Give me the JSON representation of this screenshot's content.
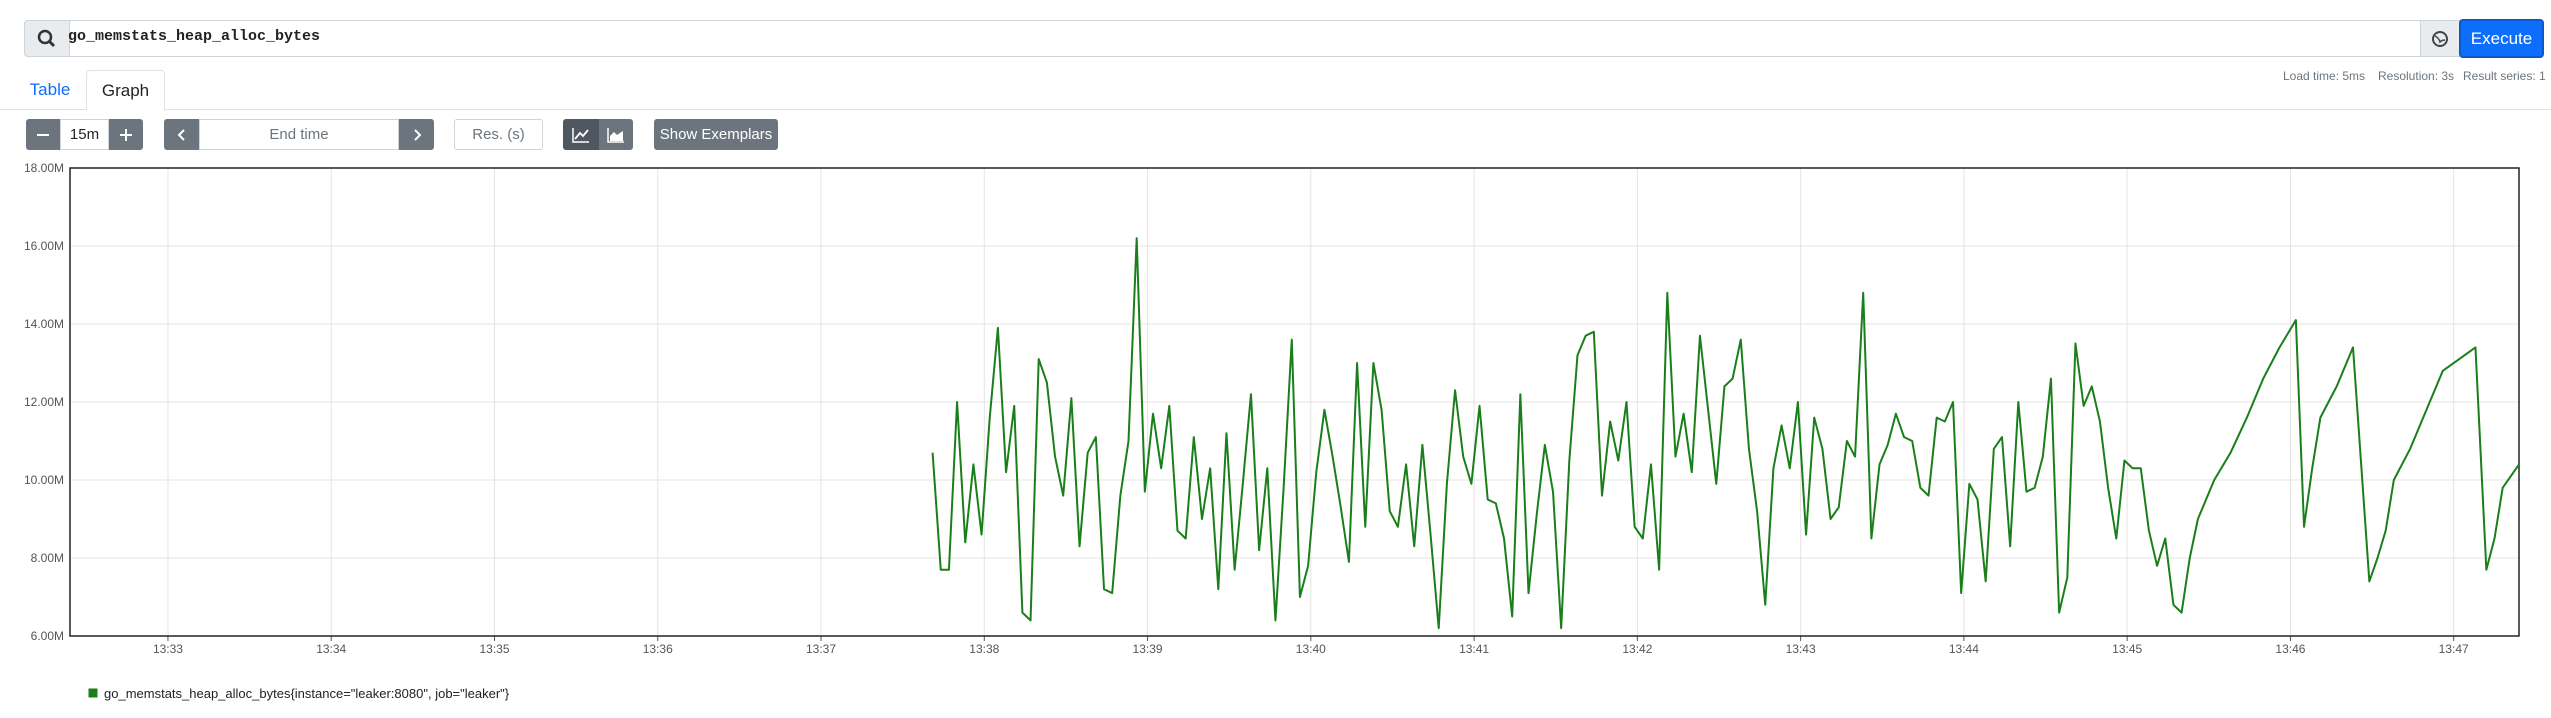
{
  "query": "go_memstats_heap_alloc_bytes",
  "execute_button": "Execute",
  "tabs": [
    "Table",
    "Graph"
  ],
  "stats": {
    "load_time": "Load time: 5ms",
    "resolution": "Resolution: 3s",
    "result_series": "Result series: 1"
  },
  "controls": {
    "range": "15m",
    "end_time_placeholder": "End time",
    "resolution_placeholder": "Res. (s)",
    "exemplars_button": "Show Exemplars"
  },
  "chart_data": {
    "type": "line",
    "x": [
      49061,
      49064,
      49067,
      49070,
      49073,
      49076,
      49079,
      49082,
      49085,
      49088,
      49091,
      49094,
      49097,
      49100,
      49103,
      49106,
      49109,
      49112,
      49115,
      49118,
      49121,
      49124,
      49127,
      49130,
      49133,
      49136,
      49139,
      49142,
      49145,
      49148,
      49151,
      49154,
      49157,
      49160,
      49163,
      49166,
      49169,
      49172,
      49175,
      49178,
      49181,
      49184,
      49187,
      49190,
      49193,
      49196,
      49199,
      49202,
      49205,
      49208,
      49211,
      49214,
      49217,
      49220,
      49223,
      49226,
      49229,
      49232,
      49235,
      49238,
      49241,
      49244,
      49247,
      49250,
      49253,
      49256,
      49259,
      49262,
      49265,
      49268,
      49271,
      49274,
      49277,
      49280,
      49283,
      49286,
      49289,
      49292,
      49295,
      49298,
      49301,
      49304,
      49307,
      49310,
      49313,
      49316,
      49319,
      49322,
      49325,
      49328,
      49331,
      49334,
      49337,
      49340,
      49343,
      49346,
      49349,
      49352,
      49355,
      49358,
      49361,
      49364,
      49367,
      49370,
      49373,
      49376,
      49379,
      49382,
      49385,
      49388,
      49391,
      49394,
      49397,
      49400,
      49403,
      49406,
      49409,
      49412,
      49415,
      49418,
      49421,
      49424,
      49427,
      49430,
      49433,
      49436,
      49439,
      49442,
      49445,
      49448,
      49451,
      49454,
      49457,
      49460,
      49463,
      49466,
      49469,
      49472,
      49475,
      49478,
      49481,
      49484,
      49487,
      49490,
      49493,
      49496,
      49499,
      49502,
      49505,
      49508,
      49511,
      49514,
      49517,
      49520,
      49523,
      49526,
      49532,
      49538,
      49544,
      49550,
      49556,
      49562,
      49565,
      49568,
      49571,
      49577,
      49583,
      49589,
      49592,
      49595,
      49598,
      49604,
      49610,
      49616,
      49628,
      49632,
      49635,
      49638,
      49644
    ],
    "series": [
      {
        "name": "go_memstats_heap_alloc_bytes{instance=\"leaker:8080\", job=\"leaker\"}",
        "color": "#1a7f1a",
        "values": [
          10.7,
          7.7,
          7.7,
          12.0,
          8.4,
          10.4,
          8.6,
          11.6,
          13.9,
          10.2,
          11.9,
          6.6,
          6.4,
          13.1,
          12.5,
          10.6,
          9.6,
          12.1,
          8.3,
          10.7,
          11.1,
          7.2,
          7.1,
          9.6,
          11.0,
          16.2,
          9.7,
          11.7,
          10.3,
          11.9,
          8.7,
          8.5,
          11.1,
          9.0,
          10.3,
          7.2,
          11.2,
          7.7,
          9.9,
          12.2,
          8.2,
          10.3,
          6.4,
          9.8,
          13.6,
          7.0,
          7.8,
          10.2,
          11.8,
          10.6,
          9.3,
          7.9,
          13.0,
          8.8,
          13.0,
          11.8,
          9.2,
          8.8,
          10.4,
          8.3,
          10.9,
          8.6,
          6.2,
          9.9,
          12.3,
          10.6,
          9.9,
          11.9,
          9.5,
          9.4,
          8.5,
          6.5,
          12.2,
          7.1,
          9.1,
          10.9,
          9.7,
          6.2,
          10.5,
          13.2,
          13.7,
          13.8,
          9.6,
          11.5,
          10.5,
          12.0,
          8.8,
          8.5,
          10.4,
          7.7,
          14.8,
          10.6,
          11.7,
          10.2,
          13.7,
          11.8,
          9.9,
          12.4,
          12.6,
          13.6,
          10.8,
          9.2,
          6.8,
          10.3,
          11.4,
          10.3,
          12.0,
          8.6,
          11.6,
          10.8,
          9.0,
          9.3,
          11.0,
          10.6,
          14.8,
          8.5,
          10.4,
          10.9,
          11.7,
          11.1,
          11.0,
          9.8,
          9.6,
          11.6,
          11.5,
          12.0,
          7.1,
          9.9,
          9.5,
          7.4,
          10.8,
          11.1,
          8.3,
          12.0,
          9.7,
          9.8,
          10.6,
          12.6,
          6.6,
          7.5,
          13.5,
          11.9,
          12.4,
          11.5,
          9.8,
          8.5,
          10.5,
          10.3,
          10.3,
          8.7,
          7.8,
          8.5,
          6.8,
          6.6,
          8.0,
          9.0,
          10.0,
          10.7,
          11.6,
          12.6,
          13.4,
          14.1,
          8.8,
          10.3,
          11.6,
          12.4,
          13.4,
          7.4,
          8.0,
          8.7,
          10.0,
          10.8,
          11.8,
          12.8,
          13.4,
          7.7,
          8.5,
          9.8,
          10.4
        ]
      }
    ],
    "xlim": [
      48744,
      49644
    ],
    "xticks": [
      {
        "value": 48780,
        "label": "13:33"
      },
      {
        "value": 48840,
        "label": "13:34"
      },
      {
        "value": 48900,
        "label": "13:35"
      },
      {
        "value": 48960,
        "label": "13:36"
      },
      {
        "value": 49020,
        "label": "13:37"
      },
      {
        "value": 49080,
        "label": "13:38"
      },
      {
        "value": 49140,
        "label": "13:39"
      },
      {
        "value": 49200,
        "label": "13:40"
      },
      {
        "value": 49260,
        "label": "13:41"
      },
      {
        "value": 49320,
        "label": "13:42"
      },
      {
        "value": 49380,
        "label": "13:43"
      },
      {
        "value": 49440,
        "label": "13:44"
      },
      {
        "value": 49500,
        "label": "13:45"
      },
      {
        "value": 49560,
        "label": "13:46"
      },
      {
        "value": 49620,
        "label": "13:47"
      }
    ],
    "ylim": [
      6,
      18
    ],
    "yticks": [
      {
        "value": 6,
        "label": "6.00M"
      },
      {
        "value": 8,
        "label": "8.00M"
      },
      {
        "value": 10,
        "label": "10.00M"
      },
      {
        "value": 12,
        "label": "12.00M"
      },
      {
        "value": 14,
        "label": "14.00M"
      },
      {
        "value": 16,
        "label": "16.00M"
      },
      {
        "value": 18,
        "label": "18.00M"
      }
    ],
    "grid": true
  }
}
